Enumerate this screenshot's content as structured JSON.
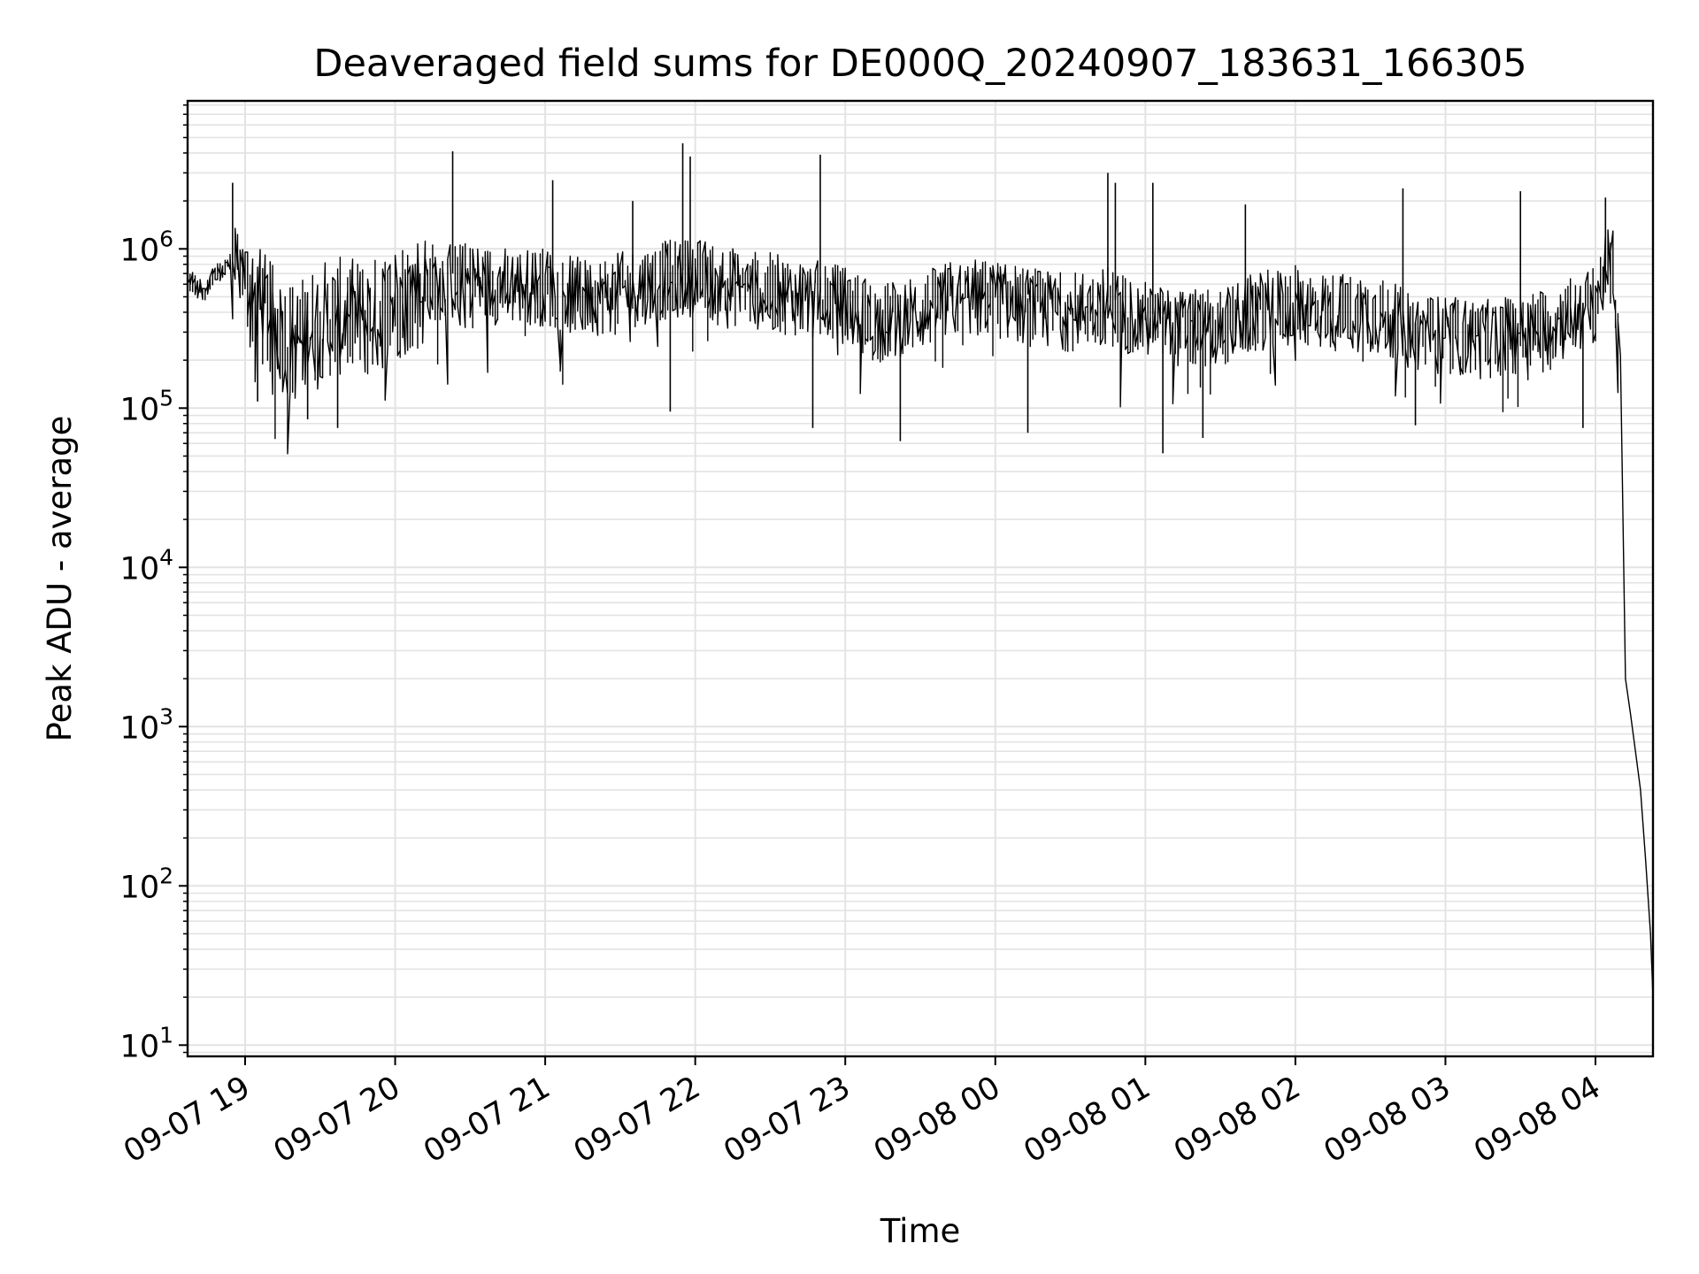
{
  "chart_data": {
    "type": "line",
    "title": "Deaveraged field sums for DE000Q_20240907_183631_166305",
    "xlabel": "Time",
    "ylabel": "Peak ADU - average",
    "yscale": "log",
    "grid": true,
    "line_color": "#000000",
    "grid_color": "#e3e3e3",
    "xlim": [
      "2024-09-07 18:37",
      "2024-09-08 04:23"
    ],
    "ylim": [
      8.5,
      8500000
    ],
    "x_ticks": [
      {
        "t": "2024-09-07 19:00",
        "label": "09-07 19"
      },
      {
        "t": "2024-09-07 20:00",
        "label": "09-07 20"
      },
      {
        "t": "2024-09-07 21:00",
        "label": "09-07 21"
      },
      {
        "t": "2024-09-07 22:00",
        "label": "09-07 22"
      },
      {
        "t": "2024-09-07 23:00",
        "label": "09-07 23"
      },
      {
        "t": "2024-09-08 00:00",
        "label": "09-08 00"
      },
      {
        "t": "2024-09-08 01:00",
        "label": "09-08 01"
      },
      {
        "t": "2024-09-08 02:00",
        "label": "09-08 02"
      },
      {
        "t": "2024-09-08 03:00",
        "label": "09-08 03"
      },
      {
        "t": "2024-09-08 04:00",
        "label": "09-08 04"
      }
    ],
    "y_ticks": [
      {
        "value": 10,
        "base": "10",
        "exp": "1"
      },
      {
        "value": 100,
        "base": "10",
        "exp": "2"
      },
      {
        "value": 1000,
        "base": "10",
        "exp": "3"
      },
      {
        "value": 10000,
        "base": "10",
        "exp": "4"
      },
      {
        "value": 100000,
        "base": "10",
        "exp": "5"
      },
      {
        "value": 1000000,
        "base": "10",
        "exp": "6"
      }
    ],
    "series": [
      {
        "x": [
          "2024-09-07 18:37",
          "2024-09-07 18:40",
          "2024-09-07 18:44",
          "2024-09-07 18:48",
          "2024-09-07 18:52",
          "2024-09-07 18:55",
          "2024-09-07 18:58",
          "2024-09-07 19:05",
          "2024-09-07 19:12",
          "2024-09-07 19:20",
          "2024-09-07 19:30",
          "2024-09-07 19:40",
          "2024-09-07 19:50",
          "2024-09-07 20:00",
          "2024-09-07 20:15",
          "2024-09-07 20:30",
          "2024-09-07 20:45",
          "2024-09-07 21:00",
          "2024-09-07 21:15",
          "2024-09-07 21:30",
          "2024-09-07 21:45",
          "2024-09-07 22:00",
          "2024-09-07 22:15",
          "2024-09-07 22:30",
          "2024-09-07 22:45",
          "2024-09-07 23:00",
          "2024-09-07 23:15",
          "2024-09-07 23:30",
          "2024-09-07 23:45",
          "2024-09-08 00:00",
          "2024-09-08 00:15",
          "2024-09-08 00:30",
          "2024-09-08 00:45",
          "2024-09-08 01:00",
          "2024-09-08 01:15",
          "2024-09-08 01:30",
          "2024-09-08 01:45",
          "2024-09-08 02:00",
          "2024-09-08 02:15",
          "2024-09-08 02:30",
          "2024-09-08 02:45",
          "2024-09-08 03:00",
          "2024-09-08 03:15",
          "2024-09-08 03:30",
          "2024-09-08 03:45",
          "2024-09-08 04:00",
          "2024-09-08 04:05",
          "2024-09-08 04:08",
          "2024-09-08 04:10",
          "2024-09-08 04:12",
          "2024-09-08 04:14",
          "2024-09-08 04:16",
          "2024-09-08 04:18",
          "2024-09-08 04:20",
          "2024-09-08 04:22",
          "2024-09-08 04:23"
        ],
        "y": [
          650000,
          600000,
          560000,
          650000,
          750000,
          800000,
          900000,
          550000,
          400000,
          300000,
          420000,
          450000,
          420000,
          550000,
          700000,
          700000,
          650000,
          650000,
          550000,
          600000,
          700000,
          750000,
          650000,
          600000,
          550000,
          500000,
          380000,
          450000,
          550000,
          550000,
          480000,
          450000,
          500000,
          400000,
          350000,
          350000,
          450000,
          500000,
          450000,
          450000,
          350000,
          320000,
          300000,
          330000,
          380000,
          500000,
          900000,
          800000,
          200000,
          2000,
          1200,
          700,
          400,
          150,
          50,
          20
        ]
      }
    ],
    "spikes_high": [
      {
        "x": "2024-09-07 18:55",
        "y": 2600000
      },
      {
        "x": "2024-09-07 20:23",
        "y": 4100000
      },
      {
        "x": "2024-09-07 21:03",
        "y": 2700000
      },
      {
        "x": "2024-09-07 21:35",
        "y": 2000000
      },
      {
        "x": "2024-09-07 21:55",
        "y": 4600000
      },
      {
        "x": "2024-09-07 21:58",
        "y": 3800000
      },
      {
        "x": "2024-09-07 22:50",
        "y": 3900000
      },
      {
        "x": "2024-09-08 00:45",
        "y": 3000000
      },
      {
        "x": "2024-09-08 00:48",
        "y": 2600000
      },
      {
        "x": "2024-09-08 01:03",
        "y": 2600000
      },
      {
        "x": "2024-09-08 01:40",
        "y": 1900000
      },
      {
        "x": "2024-09-08 02:43",
        "y": 2400000
      },
      {
        "x": "2024-09-08 03:30",
        "y": 2300000
      },
      {
        "x": "2024-09-08 04:04",
        "y": 2100000
      }
    ],
    "dips_low": [
      {
        "x": "2024-09-07 19:05",
        "y": 110000
      },
      {
        "x": "2024-09-07 19:25",
        "y": 85000
      },
      {
        "x": "2024-09-07 19:37",
        "y": 75000
      },
      {
        "x": "2024-09-07 21:50",
        "y": 95000
      },
      {
        "x": "2024-09-07 22:47",
        "y": 75000
      },
      {
        "x": "2024-09-07 23:22",
        "y": 62000
      },
      {
        "x": "2024-09-08 00:13",
        "y": 70000
      },
      {
        "x": "2024-09-08 01:07",
        "y": 52000
      },
      {
        "x": "2024-09-08 01:23",
        "y": 65000
      },
      {
        "x": "2024-09-08 02:48",
        "y": 78000
      },
      {
        "x": "2024-09-08 03:55",
        "y": 75000
      }
    ]
  }
}
